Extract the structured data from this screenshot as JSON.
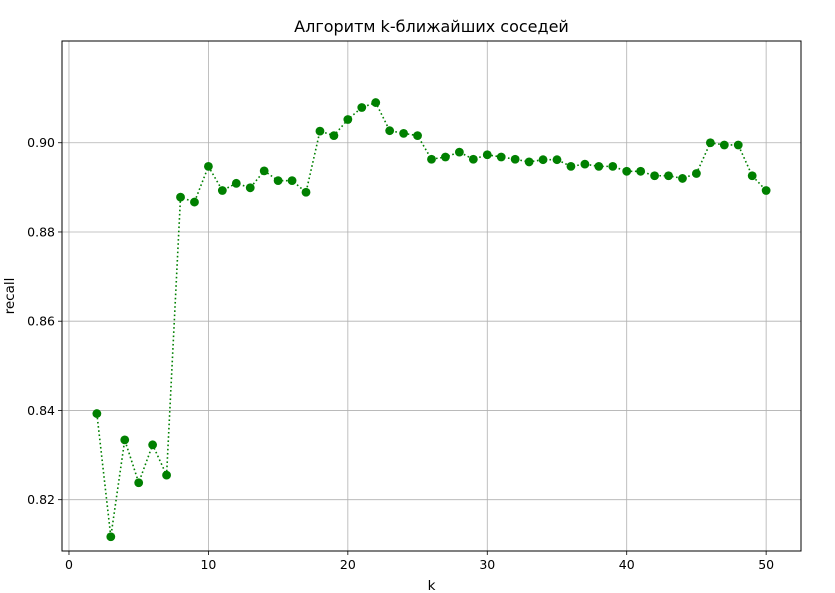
{
  "chart_data": {
    "type": "line",
    "title": "Алгоритм k-ближайших соседей",
    "xlabel": "k",
    "ylabel": "recall",
    "xlim": [
      -0.5,
      52.5
    ],
    "ylim": [
      0.8085,
      0.9228
    ],
    "xticks": [
      0,
      10,
      20,
      30,
      40,
      50
    ],
    "yticks": [
      0.82,
      0.84,
      0.86,
      0.88,
      0.9
    ],
    "ytick_labels": [
      "0.82",
      "0.84",
      "0.86",
      "0.88",
      "0.90"
    ],
    "grid": true,
    "series": [
      {
        "color": "#008000",
        "line_style": "dotted",
        "marker": "circle",
        "x": [
          2,
          3,
          4,
          5,
          6,
          7,
          8,
          9,
          10,
          11,
          12,
          13,
          14,
          15,
          16,
          17,
          18,
          19,
          20,
          21,
          22,
          23,
          24,
          25,
          26,
          27,
          28,
          29,
          30,
          31,
          32,
          33,
          34,
          35,
          36,
          37,
          38,
          39,
          40,
          41,
          42,
          43,
          44,
          45,
          46,
          47,
          48,
          49,
          50
        ],
        "y": [
          0.8393,
          0.8117,
          0.8334,
          0.8238,
          0.8323,
          0.8255,
          0.8878,
          0.8867,
          0.8947,
          0.8893,
          0.8909,
          0.8899,
          0.8937,
          0.8915,
          0.8915,
          0.8889,
          0.9026,
          0.9016,
          0.9052,
          0.9079,
          0.909,
          0.9027,
          0.9021,
          0.9016,
          0.8963,
          0.8968,
          0.8979,
          0.8963,
          0.8973,
          0.8968,
          0.8963,
          0.8957,
          0.8962,
          0.8962,
          0.8947,
          0.8952,
          0.8947,
          0.8947,
          0.8936,
          0.8936,
          0.8926,
          0.8926,
          0.892,
          0.8931,
          0.9,
          0.8995,
          0.8995,
          0.8926,
          0.8893
        ]
      }
    ]
  }
}
